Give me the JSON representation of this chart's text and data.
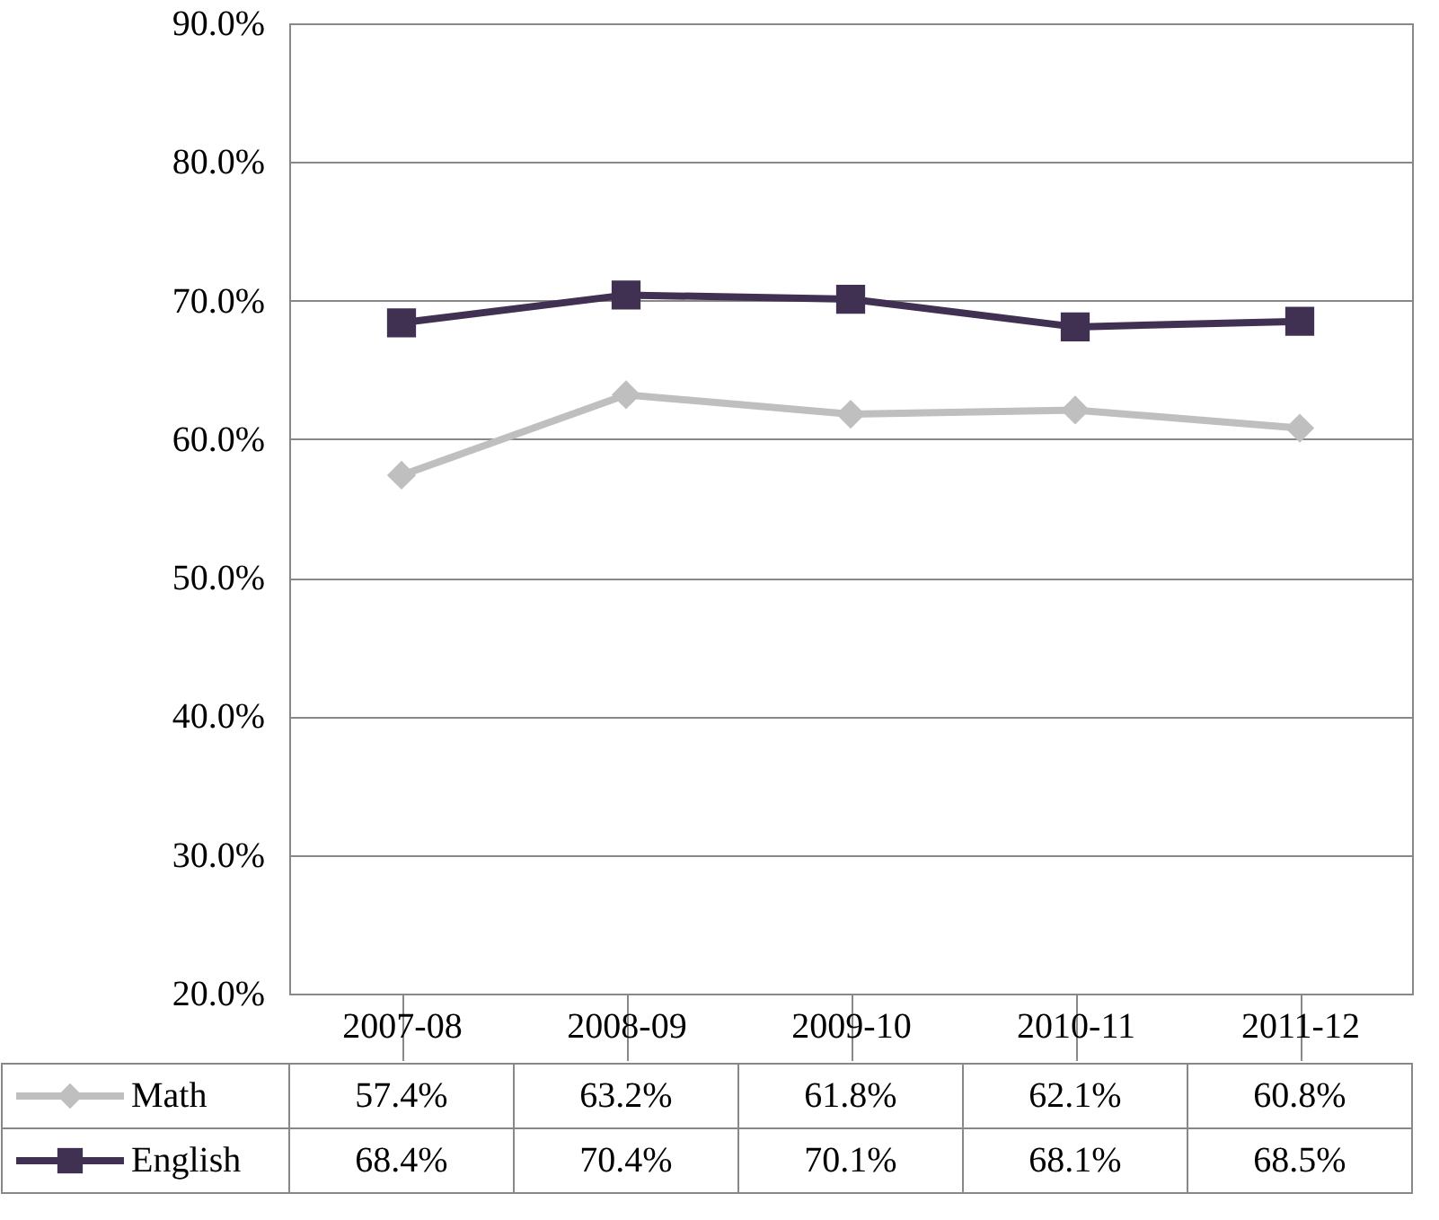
{
  "chart_data": {
    "type": "line",
    "categories": [
      "2007-08",
      "2008-09",
      "2009-10",
      "2010-11",
      "2011-12"
    ],
    "series": [
      {
        "name": "Math",
        "color": "#bfbfbf",
        "marker": "diamond",
        "values": [
          57.4,
          63.2,
          61.8,
          62.1,
          60.8
        ],
        "value_labels": [
          "57.4%",
          "63.2%",
          "61.8%",
          "62.1%",
          "60.8%"
        ]
      },
      {
        "name": "English",
        "color": "#403152",
        "marker": "square",
        "values": [
          68.4,
          70.4,
          70.1,
          68.1,
          68.5
        ],
        "value_labels": [
          "68.4%",
          "70.4%",
          "70.1%",
          "68.1%",
          "68.5%"
        ]
      }
    ],
    "ylim": [
      20,
      90
    ],
    "yticks": [
      {
        "value": 20,
        "label": "20.0%"
      },
      {
        "value": 30,
        "label": "30.0%"
      },
      {
        "value": 40,
        "label": "40.0%"
      },
      {
        "value": 50,
        "label": "50.0%"
      },
      {
        "value": 60,
        "label": "60.0%"
      },
      {
        "value": 70,
        "label": "70.0%"
      },
      {
        "value": 80,
        "label": "80.0%"
      },
      {
        "value": 90,
        "label": "90.0%"
      }
    ],
    "grid": "y",
    "legend": "bottom"
  }
}
